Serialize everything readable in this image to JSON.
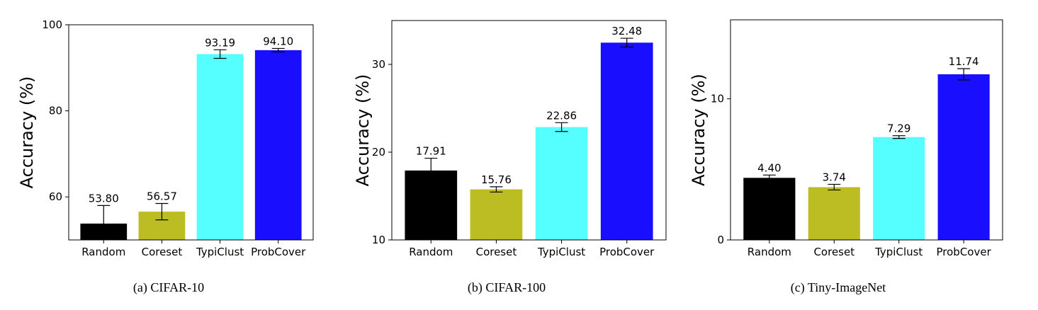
{
  "chart_data": [
    {
      "type": "bar",
      "caption": "(a) CIFAR-10",
      "ylabel": "Accuracy (%)",
      "categories": [
        "Random",
        "Coreset",
        "TypiClust",
        "ProbCover"
      ],
      "values": [
        53.8,
        56.57,
        93.19,
        94.1
      ],
      "value_labels": [
        "53.80",
        "56.57",
        "93.19",
        "94.10"
      ],
      "errors": [
        4.2,
        1.9,
        1.0,
        0.4
      ],
      "colors": [
        "#000000",
        "#bcbd22",
        "#55ffff",
        "#1a0eff"
      ],
      "ylim": [
        50,
        100
      ],
      "yticks": [
        60,
        80,
        100
      ],
      "ytick_labels": [
        "60",
        "80",
        "100"
      ]
    },
    {
      "type": "bar",
      "caption": "(b) CIFAR-100",
      "ylabel": "Accuracy (%)",
      "categories": [
        "Random",
        "Coreset",
        "TypiClust",
        "ProbCover"
      ],
      "values": [
        17.91,
        15.76,
        22.86,
        32.48
      ],
      "value_labels": [
        "17.91",
        "15.76",
        "22.86",
        "32.48"
      ],
      "errors": [
        1.4,
        0.3,
        0.5,
        0.5
      ],
      "colors": [
        "#000000",
        "#bcbd22",
        "#55ffff",
        "#1a0eff"
      ],
      "ylim": [
        10,
        35
      ],
      "yticks": [
        10,
        20,
        30
      ],
      "ytick_labels": [
        "10",
        "20",
        "30"
      ]
    },
    {
      "type": "bar",
      "caption": "(c) Tiny-ImageNet",
      "ylabel": "Accuracy (%)",
      "categories": [
        "Random",
        "Coreset",
        "TypiClust",
        "ProbCover"
      ],
      "values": [
        4.4,
        3.74,
        7.29,
        11.74
      ],
      "value_labels": [
        "4.40",
        "3.74",
        "7.29",
        "11.74"
      ],
      "errors": [
        0.2,
        0.2,
        0.1,
        0.4
      ],
      "colors": [
        "#000000",
        "#bcbd22",
        "#55ffff",
        "#1a0eff"
      ],
      "ylim": [
        0,
        15.6
      ],
      "yticks": [
        0,
        10
      ],
      "ytick_labels": [
        "0",
        "10"
      ]
    }
  ]
}
